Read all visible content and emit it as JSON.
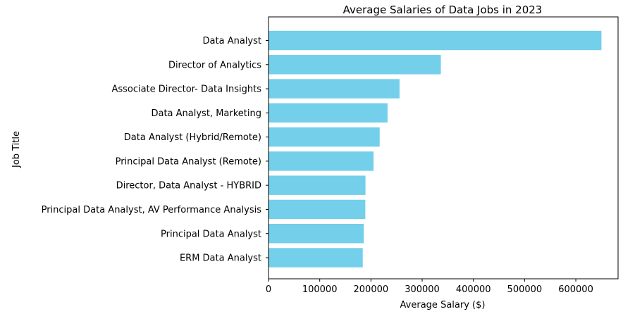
{
  "chart_data": {
    "type": "bar",
    "orientation": "horizontal",
    "title": "Average Salaries of Data Jobs in 2023",
    "xlabel": "Average Salary ($)",
    "ylabel": "Job Title",
    "categories": [
      "Data Analyst",
      "Director of Analytics",
      "Associate Director- Data Insights",
      "Data Analyst, Marketing",
      "Data Analyst (Hybrid/Remote)",
      "Principal Data Analyst (Remote)",
      "Director, Data Analyst - HYBRID",
      "Principal Data Analyst, AV Performance Analysis",
      "Principal Data Analyst",
      "ERM Data Analyst"
    ],
    "values": [
      650000,
      336500,
      255830,
      232423,
      217000,
      205000,
      189309,
      189000,
      186000,
      184000
    ],
    "xlim": [
      0,
      682500
    ],
    "xticks": [
      0,
      100000,
      200000,
      300000,
      400000,
      500000,
      600000
    ],
    "xtick_labels": [
      "0",
      "100000",
      "200000",
      "300000",
      "400000",
      "500000",
      "600000"
    ],
    "bar_color": "#73cfea",
    "grid": false,
    "legend": "none"
  }
}
